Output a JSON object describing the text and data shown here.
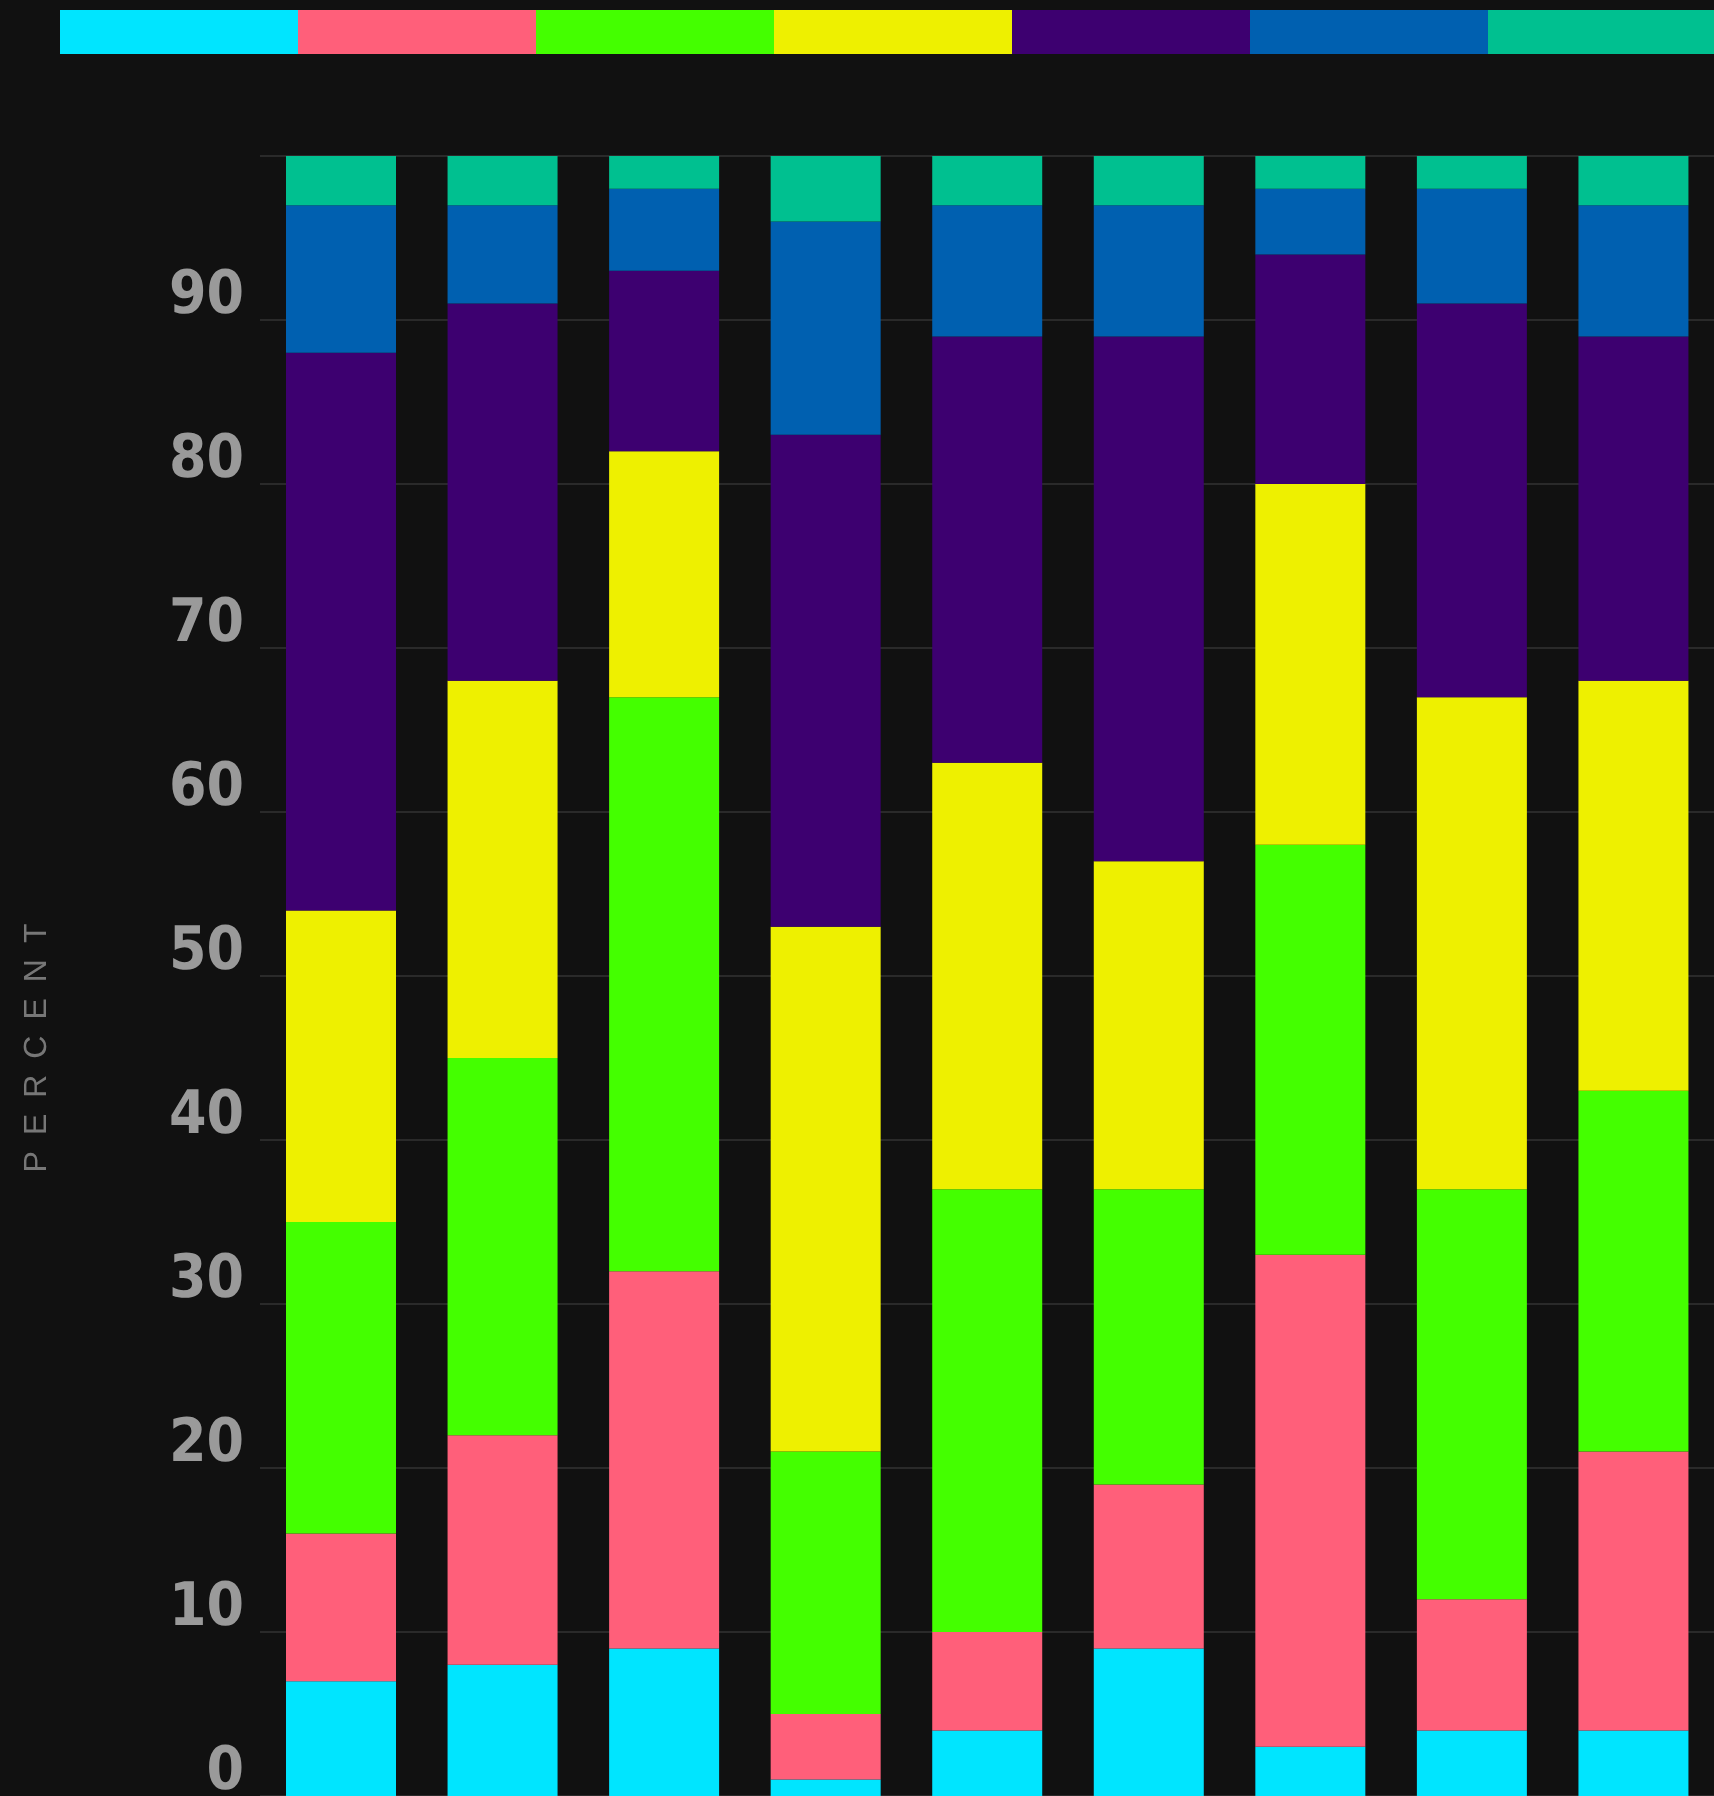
{
  "chart_data": {
    "type": "bar",
    "stacked": true,
    "ylabel": "PERCENT",
    "categories": [
      null,
      null,
      null,
      null,
      null,
      null,
      null,
      null,
      null
    ],
    "series": [
      {
        "color": "#00e5ff",
        "values": [
          7,
          8,
          9,
          1,
          4,
          9,
          3,
          4,
          4
        ]
      },
      {
        "color": "#ff5f7a",
        "values": [
          9,
          14,
          23,
          4,
          6,
          10,
          30,
          8,
          17
        ]
      },
      {
        "color": "#44ff00",
        "values": [
          19,
          23,
          35,
          16,
          27,
          18,
          25,
          25,
          22
        ]
      },
      {
        "color": "#eef000",
        "values": [
          19,
          23,
          15,
          32,
          26,
          20,
          22,
          30,
          25
        ]
      },
      {
        "color": "#3d0070",
        "values": [
          34,
          23,
          11,
          30,
          26,
          32,
          14,
          24,
          21
        ]
      },
      {
        "color": "#0060b0",
        "values": [
          9,
          6,
          5,
          13,
          8,
          8,
          4,
          7,
          8
        ]
      },
      {
        "color": "#00c090",
        "values": [
          3,
          3,
          2,
          4,
          3,
          3,
          2,
          2,
          3
        ]
      }
    ],
    "ylim": [
      0,
      100
    ],
    "yticks": [
      0,
      10,
      20,
      30,
      40,
      50,
      60,
      70,
      80,
      90
    ],
    "grid": "y"
  }
}
